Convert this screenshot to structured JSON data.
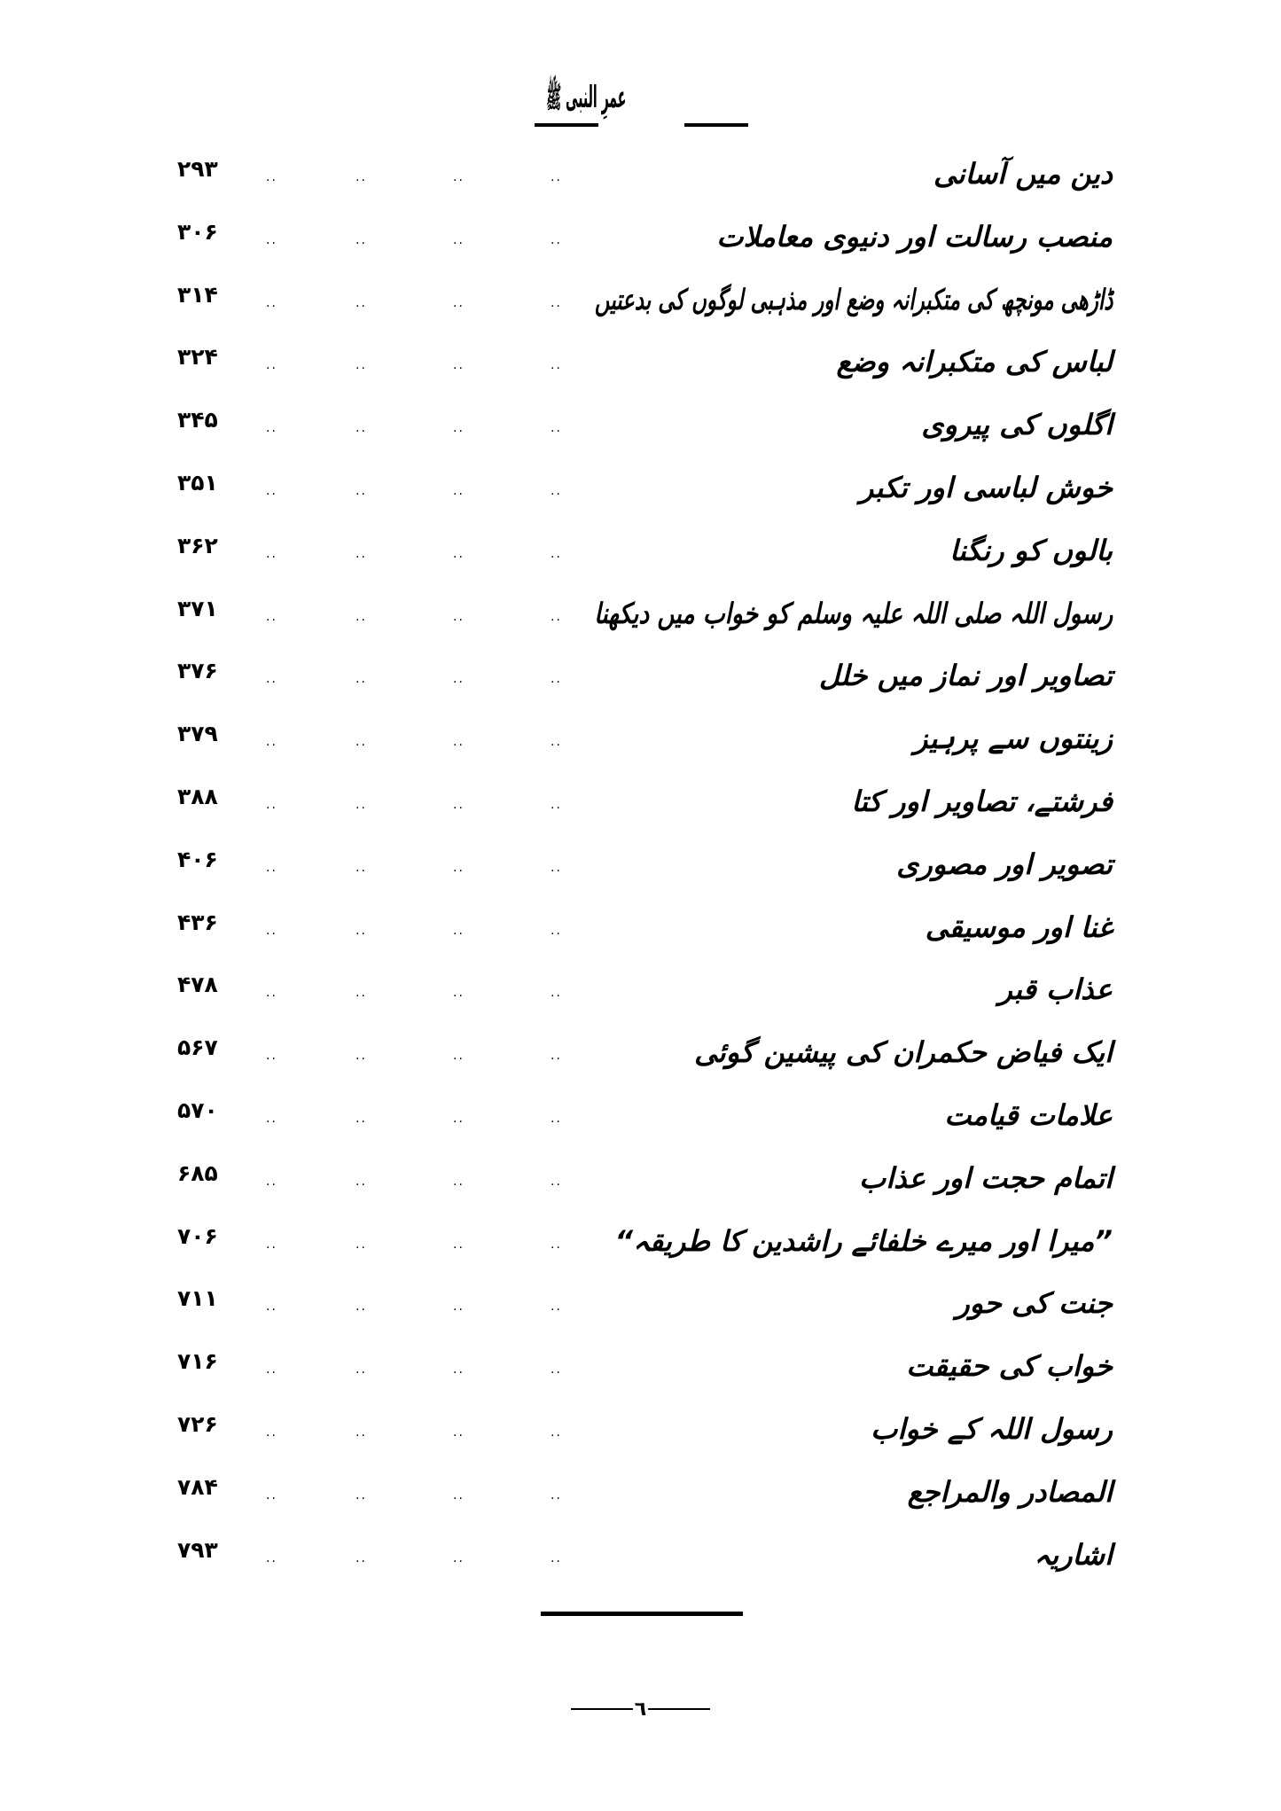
{
  "header": {
    "logo_text": "عمرِ النبی ﷺ"
  },
  "toc": {
    "leader": "..",
    "entries": [
      {
        "title": "دین میں آسانی",
        "page": "۲۹۳"
      },
      {
        "title": "منصب رسالت اور دنیوی معاملات",
        "page": "۳۰۶"
      },
      {
        "title": "ڈاڑھی مونچھ کی متکبرانہ وضع اور مذہبی لوگوں کی بدعتیں",
        "page": "۳۱۴"
      },
      {
        "title": "لباس کی متکبرانہ وضع",
        "page": "۳۲۴"
      },
      {
        "title": "اگلوں کی پیروی",
        "page": "۳۴۵"
      },
      {
        "title": "خوش لباسی اور تکبر",
        "page": "۳۵۱"
      },
      {
        "title": "بالوں کو رنگنا",
        "page": "۳۶۲"
      },
      {
        "title": "رسول اللہ صلی اللہ علیہ وسلم کو خواب میں دیکھنا",
        "page": "۳۷۱"
      },
      {
        "title": "تصاویر اور نماز میں خلل",
        "page": "۳۷۶"
      },
      {
        "title": "زینتوں سے پرہیز",
        "page": "۳۷۹"
      },
      {
        "title": "فرشتے، تصاویر اور کتا",
        "page": "۳۸۸"
      },
      {
        "title": "تصویر اور مصوری",
        "page": "۴۰۶"
      },
      {
        "title": "غنا اور موسیقی",
        "page": "۴۳۶"
      },
      {
        "title": "عذاب قبر",
        "page": "۴۷۸"
      },
      {
        "title": "ایک فیاض حکمران کی پیشین گوئی",
        "page": "۵۶۷"
      },
      {
        "title": "علامات قیامت",
        "page": "۵۷۰"
      },
      {
        "title": "اتمام حجت اور عذاب",
        "page": "۶۸۵"
      },
      {
        "title": "”میرا اور میرے خلفائے راشدین کا طریقہ“",
        "page": "۷۰۶"
      },
      {
        "title": "جنت کی حور",
        "page": "۷۱۱"
      },
      {
        "title": "خواب کی حقیقت",
        "page": "۷۱۶"
      },
      {
        "title": "رسول اللہ کے خواب",
        "page": "۷۲۶"
      },
      {
        "title": "المصادر والمراجع",
        "page": "۷۸۴"
      },
      {
        "title": "اشاریہ",
        "page": "۷۹۳"
      }
    ]
  },
  "footer": {
    "page_number": "٦"
  }
}
